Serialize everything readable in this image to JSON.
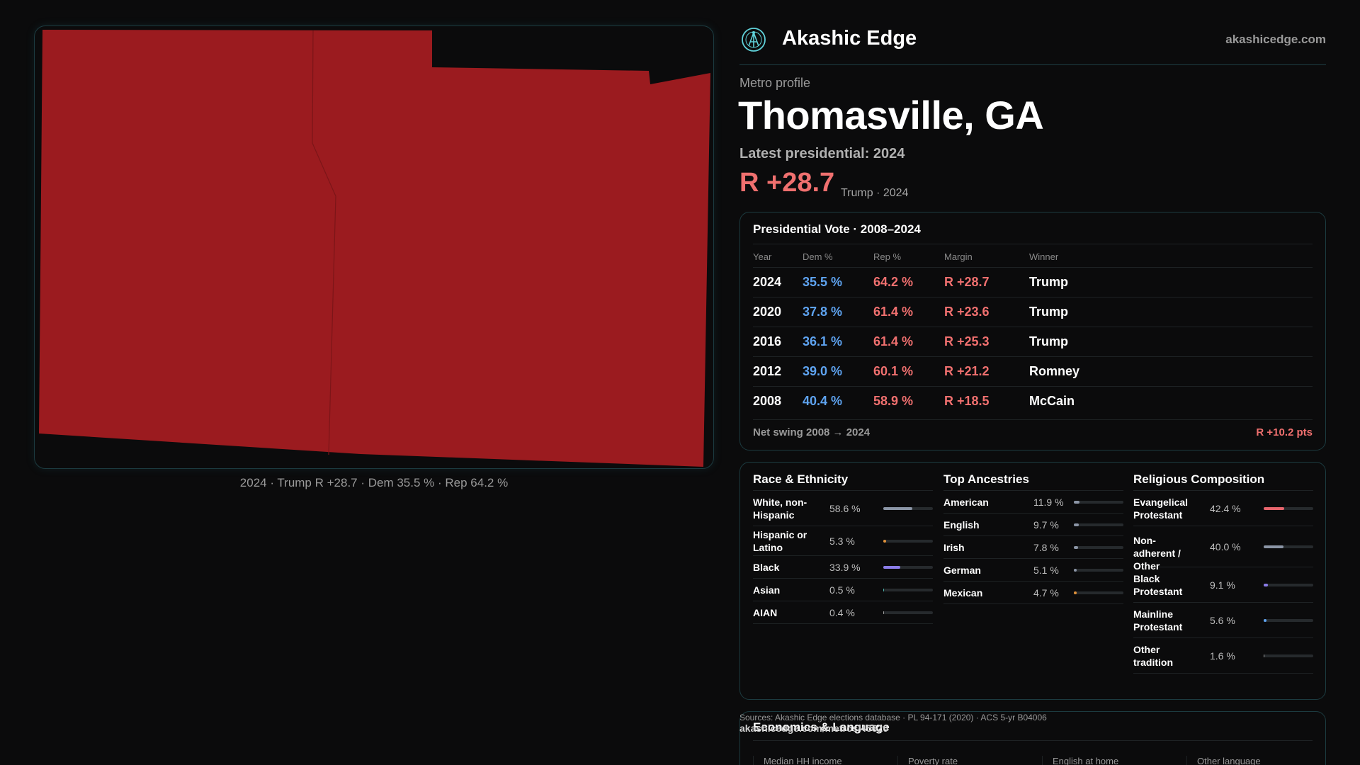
{
  "map": {
    "caption": "2024 · Trump R +28.7 · Dem 35.5 % · Rep 64.2 %",
    "fill_color": "#9b1b1f"
  },
  "header": {
    "brand_name": "Akashic Edge",
    "brand_url": "akashicedge.com",
    "logo_icon": "akashic-logo-icon"
  },
  "profile": {
    "kicker": "Metro profile",
    "title": "Thomasville, GA",
    "latest_label": "Latest presidential: 2024",
    "margin": "R +28.7",
    "margin_detail": "Trump · 2024"
  },
  "vote": {
    "title": "Presidential Vote · 2008–2024",
    "columns": [
      "Year",
      "Dem %",
      "Rep %",
      "Margin",
      "Winner"
    ],
    "rows": [
      {
        "year": "2024",
        "dem": "35.5 %",
        "rep": "64.2 %",
        "margin": "R +28.7",
        "winner": "Trump"
      },
      {
        "year": "2020",
        "dem": "37.8 %",
        "rep": "61.4 %",
        "margin": "R +23.6",
        "winner": "Trump"
      },
      {
        "year": "2016",
        "dem": "36.1 %",
        "rep": "61.4 %",
        "margin": "R +25.3",
        "winner": "Trump"
      },
      {
        "year": "2012",
        "dem": "39.0 %",
        "rep": "60.1 %",
        "margin": "R +21.2",
        "winner": "Romney"
      },
      {
        "year": "2008",
        "dem": "40.4 %",
        "rep": "58.9 %",
        "margin": "R +18.5",
        "winner": "McCain"
      }
    ],
    "swing_label": "Net swing 2008 → 2024",
    "swing_value": "R +10.2 pts"
  },
  "race": {
    "title": "Race & Ethnicity",
    "rows": [
      {
        "label": "White, non-Hispanic",
        "pct": "58.6 %",
        "value": 58.6,
        "color": "#8b95a6"
      },
      {
        "label": "Hispanic or Latino",
        "pct": "5.3 %",
        "value": 5.3,
        "color": "#e0913a"
      },
      {
        "label": "Black",
        "pct": "33.9 %",
        "value": 33.9,
        "color": "#8b7de8"
      },
      {
        "label": "Asian",
        "pct": "0.5 %",
        "value": 0.5,
        "color": "#4db6ac"
      },
      {
        "label": "AIAN",
        "pct": "0.4 %",
        "value": 0.4,
        "color": "#a0a0a0"
      }
    ]
  },
  "ancestry": {
    "title": "Top Ancestries",
    "rows": [
      {
        "label": "American",
        "pct": "11.9 %",
        "value": 11.9,
        "color": "#8b95a6"
      },
      {
        "label": "English",
        "pct": "9.7 %",
        "value": 9.7,
        "color": "#8b95a6"
      },
      {
        "label": "Irish",
        "pct": "7.8 %",
        "value": 7.8,
        "color": "#8b95a6"
      },
      {
        "label": "German",
        "pct": "5.1 %",
        "value": 5.1,
        "color": "#8b95a6"
      },
      {
        "label": "Mexican",
        "pct": "4.7 %",
        "value": 4.7,
        "color": "#e0913a"
      }
    ]
  },
  "religion": {
    "title": "Religious Composition",
    "rows": [
      {
        "label": "Evangelical Protestant",
        "pct": "42.4 %",
        "value": 42.4,
        "color": "#e8656d"
      },
      {
        "label": "Non-adherent / Other",
        "pct": "40.0 %",
        "value": 40.0,
        "color": "#8b95a6"
      },
      {
        "label": "Black Protestant",
        "pct": "9.1 %",
        "value": 9.1,
        "color": "#8b7de8"
      },
      {
        "label": "Mainline Protestant",
        "pct": "5.6 %",
        "value": 5.6,
        "color": "#5ea3f0"
      },
      {
        "label": "Other tradition",
        "pct": "1.6 %",
        "value": 1.6,
        "color": "#a0a0a0"
      }
    ]
  },
  "sources": {
    "text": "Sources: Akashic Edge elections database · PL 94-171 (2020) · ACS 5-yr B04006",
    "link": "akashicedge.com/metros/45620"
  },
  "economics": {
    "title": "Economics & Language",
    "columns": [
      "Median HH income",
      "Poverty rate",
      "English at home",
      "Other language"
    ]
  }
}
